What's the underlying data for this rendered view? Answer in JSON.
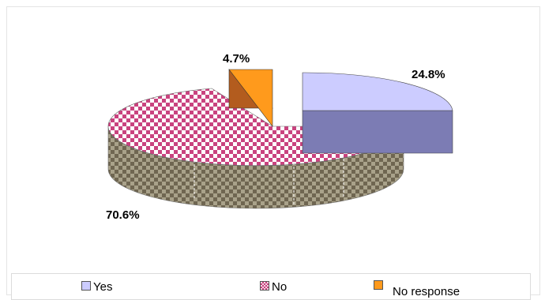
{
  "chart_data": {
    "type": "pie",
    "three_d": true,
    "title": "",
    "slices": [
      {
        "name": "Yes",
        "value": 24.8,
        "label": "24.8%",
        "color": "#ccccff",
        "side_color": "#7c7cb4",
        "pattern": "solid",
        "exploded": true
      },
      {
        "name": "No",
        "value": 70.6,
        "label": "70.6%",
        "color": "#c9437f",
        "side_color": "#6f6651",
        "pattern": "checker",
        "exploded": false
      },
      {
        "name": "No response",
        "value": 4.7,
        "label": "4.7%",
        "color": "#ff9a1c",
        "side_color": "#b35c1e",
        "pattern": "solid",
        "exploded": true
      }
    ],
    "legend": {
      "placement": "bottom",
      "items": [
        "Yes",
        "No",
        "No response"
      ]
    }
  }
}
